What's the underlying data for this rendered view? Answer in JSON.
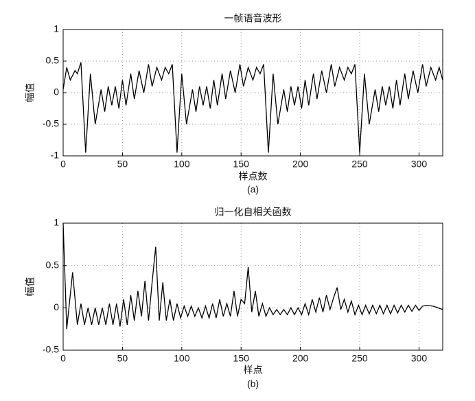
{
  "chart_data": [
    {
      "type": "line",
      "title": "一帧语音波形",
      "xlabel": "样点数",
      "ylabel": "幅值",
      "caption": "(a)",
      "x": [
        0,
        3,
        6,
        10,
        12,
        15,
        19,
        23,
        27,
        32,
        35,
        38,
        41,
        44,
        47,
        50,
        53,
        57,
        60,
        64,
        68,
        72,
        75,
        79,
        83,
        86,
        89,
        92,
        96,
        100,
        104,
        109,
        112,
        115,
        118,
        121,
        124,
        127,
        130,
        134,
        137,
        141,
        145,
        149,
        152,
        156,
        160,
        163,
        166,
        169,
        173,
        177,
        181,
        186,
        189,
        192,
        195,
        198,
        201,
        204,
        207,
        211,
        214,
        218,
        222,
        226,
        229,
        233,
        237,
        240,
        243,
        246,
        250,
        254,
        258,
        263,
        266,
        269,
        272,
        275,
        278,
        281,
        284,
        288,
        291,
        295,
        299,
        303,
        306,
        310,
        314,
        317,
        320
      ],
      "values": [
        0.05,
        0.4,
        0.2,
        0.35,
        0.3,
        0.48,
        -0.95,
        0.3,
        -0.5,
        0.05,
        -0.3,
        0.1,
        -0.2,
        0.1,
        -0.25,
        0.2,
        -0.2,
        0.3,
        -0.1,
        0.35,
        0.0,
        0.45,
        0.1,
        0.4,
        0.2,
        0.4,
        0.3,
        0.45,
        -0.95,
        0.3,
        -0.5,
        0.05,
        -0.3,
        0.1,
        -0.2,
        0.1,
        -0.25,
        0.2,
        -0.2,
        0.3,
        -0.1,
        0.35,
        0.0,
        0.45,
        0.1,
        0.4,
        0.2,
        0.4,
        0.3,
        0.45,
        -0.95,
        0.3,
        -0.5,
        0.05,
        -0.3,
        0.1,
        -0.2,
        0.1,
        -0.25,
        0.2,
        -0.2,
        0.3,
        -0.1,
        0.35,
        0.0,
        0.45,
        0.1,
        0.4,
        0.2,
        0.4,
        0.3,
        0.45,
        -0.95,
        0.3,
        -0.5,
        0.05,
        -0.3,
        0.1,
        -0.2,
        0.1,
        -0.25,
        0.2,
        -0.2,
        0.3,
        -0.1,
        0.35,
        0.0,
        0.45,
        0.1,
        0.4,
        0.2,
        0.4,
        0.2
      ],
      "color": "#000000",
      "xlim": [
        0,
        320
      ],
      "xticks": [
        0,
        50,
        100,
        150,
        200,
        250,
        300
      ],
      "ylim": [
        -1,
        1
      ],
      "yticks": [
        -1,
        -0.5,
        0,
        0.5,
        1
      ],
      "grid": true
    },
    {
      "type": "line",
      "title": "归一化自相关函数",
      "xlabel": "样点",
      "ylabel": "幅值",
      "caption": "(b)",
      "x": [
        0,
        3,
        8,
        12,
        15,
        18,
        21,
        24,
        27,
        30,
        33,
        36,
        39,
        42,
        45,
        48,
        51,
        54,
        57,
        60,
        63,
        66,
        69,
        72,
        75,
        78,
        81,
        84,
        87,
        90,
        93,
        96,
        99,
        102,
        105,
        108,
        111,
        114,
        117,
        120,
        123,
        126,
        129,
        132,
        135,
        138,
        141,
        144,
        147,
        150,
        153,
        156,
        159,
        162,
        165,
        168,
        171,
        174,
        177,
        180,
        183,
        186,
        189,
        192,
        195,
        198,
        201,
        204,
        207,
        210,
        213,
        216,
        219,
        222,
        225,
        228,
        231,
        234,
        237,
        240,
        243,
        246,
        249,
        252,
        255,
        258,
        261,
        264,
        267,
        270,
        273,
        276,
        279,
        282,
        285,
        288,
        291,
        294,
        297,
        300,
        303,
        306,
        312,
        320
      ],
      "values": [
        1.0,
        -0.25,
        0.42,
        -0.2,
        0.05,
        -0.2,
        0.0,
        -0.2,
        0.0,
        -0.2,
        0.0,
        -0.2,
        0.05,
        -0.2,
        0.05,
        -0.22,
        0.1,
        -0.2,
        0.15,
        -0.15,
        0.2,
        -0.1,
        0.32,
        -0.15,
        0.3,
        0.72,
        -0.15,
        0.3,
        -0.15,
        0.1,
        -0.15,
        0.05,
        -0.12,
        0.02,
        -0.1,
        0.02,
        -0.1,
        0.0,
        -0.12,
        0.02,
        -0.12,
        0.05,
        -0.12,
        0.1,
        -0.1,
        0.05,
        -0.1,
        0.2,
        -0.1,
        0.1,
        0.05,
        0.48,
        -0.05,
        0.2,
        -0.1,
        0.05,
        -0.1,
        0.0,
        -0.08,
        -0.02,
        -0.08,
        -0.02,
        -0.08,
        0.0,
        -0.08,
        0.0,
        -0.08,
        0.05,
        -0.08,
        0.1,
        -0.05,
        0.12,
        -0.05,
        0.15,
        -0.02,
        0.12,
        0.24,
        -0.02,
        0.1,
        -0.05,
        0.08,
        -0.08,
        0.03,
        -0.08,
        0.03,
        -0.07,
        0.03,
        -0.07,
        0.03,
        -0.07,
        0.03,
        -0.07,
        0.03,
        -0.06,
        0.03,
        -0.05,
        0.03,
        -0.04,
        0.03,
        -0.03,
        0.02,
        0.03,
        0.02,
        -0.02
      ],
      "color": "#000000",
      "xlim": [
        0,
        320
      ],
      "xticks": [
        0,
        50,
        100,
        150,
        200,
        250,
        300
      ],
      "ylim": [
        -0.5,
        1
      ],
      "yticks": [
        -0.5,
        0,
        0.5,
        1
      ],
      "grid": true
    }
  ]
}
